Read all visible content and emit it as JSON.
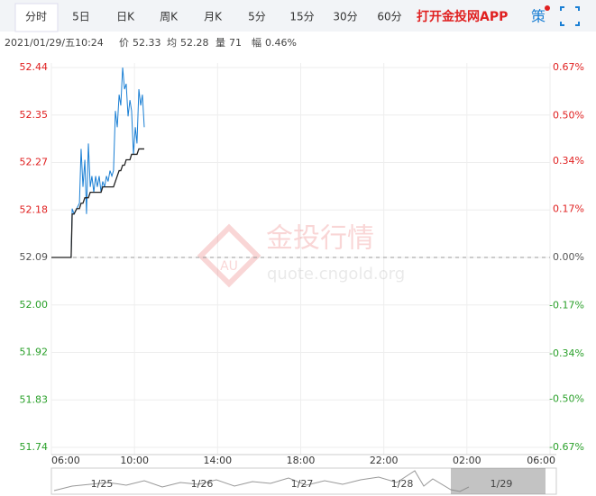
{
  "toolbar": {
    "tabs": [
      "分时",
      "5日",
      "日K",
      "周K",
      "月K",
      "5分",
      "15分",
      "30分",
      "60分"
    ],
    "app_link": "打开金投网APP",
    "strategy": "策"
  },
  "quote": {
    "datetime": "2021/01/29/五10:24",
    "price_label": "价",
    "price": "52.33",
    "avg_label": "均",
    "avg": "52.28",
    "volume_label": "量",
    "volume": "71",
    "change_label": "幅",
    "change": "0.46%"
  },
  "watermark": {
    "brand": "金投行情",
    "site": "quote.cngold.org",
    "logo": "AU"
  },
  "navigator": {
    "dates": [
      "1/25",
      "1/26",
      "1/27",
      "1/28",
      "1/29"
    ]
  },
  "chart_data": {
    "type": "line",
    "x": [
      0,
      0.95,
      1.0,
      1.09,
      1.22,
      1.35,
      1.43,
      1.52,
      1.61,
      1.69,
      1.78,
      1.87,
      1.95,
      2.04,
      2.13,
      2.21,
      2.3,
      2.39,
      2.47,
      2.56,
      2.65,
      2.73,
      2.82,
      2.91,
      2.99,
      3.08,
      3.17,
      3.26,
      3.34,
      3.43,
      3.52,
      3.6,
      3.69,
      3.78,
      3.86,
      3.95,
      4.04,
      4.12,
      4.21,
      4.3,
      4.38,
      4.47
    ],
    "series": [
      {
        "color": "#1a7fd4",
        "values": [
          52.09,
          52.09,
          52.18,
          52.17,
          52.18,
          52.19,
          52.29,
          52.22,
          52.27,
          52.17,
          52.3,
          52.22,
          52.24,
          52.21,
          52.24,
          52.22,
          52.24,
          52.21,
          52.23,
          52.22,
          52.24,
          52.23,
          52.25,
          52.24,
          52.25,
          52.36,
          52.33,
          52.39,
          52.37,
          52.44,
          52.4,
          52.41,
          52.35,
          52.38,
          52.36,
          52.28,
          52.33,
          52.3,
          52.4,
          52.37,
          52.39,
          52.33
        ]
      },
      {
        "color": "#222222",
        "values": [
          52.09,
          52.09,
          52.17,
          52.17,
          52.18,
          52.18,
          52.19,
          52.19,
          52.2,
          52.2,
          52.2,
          52.21,
          52.21,
          52.21,
          52.21,
          52.21,
          52.21,
          52.21,
          52.22,
          52.22,
          52.22,
          52.22,
          52.22,
          52.22,
          52.22,
          52.23,
          52.24,
          52.25,
          52.25,
          52.26,
          52.26,
          52.27,
          52.27,
          52.27,
          52.28,
          52.28,
          52.28,
          52.28,
          52.29,
          52.29,
          52.29,
          52.29
        ]
      }
    ],
    "xlim": [
      0,
      24
    ],
    "xticks": [
      {
        "value": 0,
        "label": "06:00"
      },
      {
        "value": 4,
        "label": "10:00"
      },
      {
        "value": 8,
        "label": "14:00"
      },
      {
        "value": 12,
        "label": "18:00"
      },
      {
        "value": 16,
        "label": "22:00"
      },
      {
        "value": 20,
        "label": "02:00"
      },
      {
        "value": 24,
        "label": "06:00"
      }
    ],
    "ylim": [
      51.74,
      52.44
    ],
    "yticks": [
      52.44,
      {
        "value": 52.3525,
        "label": "52.35"
      },
      {
        "value": 52.265,
        "label": "52.27"
      },
      {
        "value": 52.1775,
        "label": "52.18"
      },
      52.09,
      {
        "value": 52.0025,
        "label": "52.00"
      },
      {
        "value": 51.915,
        "label": "51.92"
      },
      {
        "value": 51.8275,
        "label": "51.83"
      },
      51.74
    ],
    "y2lim": [
      -0.67,
      0.67
    ],
    "y2ticks": [
      {
        "value": 0.67,
        "label": "0.67%"
      },
      {
        "value": 0.5,
        "label": "0.50%"
      },
      {
        "value": 0.34,
        "label": "0.34%"
      },
      {
        "value": 0.17,
        "label": "0.17%"
      },
      {
        "value": 0,
        "label": "0.00%"
      },
      {
        "value": -0.17,
        "label": "-0.17%"
      },
      {
        "value": -0.34,
        "label": "-0.34%"
      },
      {
        "value": -0.5,
        "label": "-0.50%"
      },
      {
        "value": -0.67,
        "label": "-0.67%"
      }
    ],
    "reference_line": 52.09,
    "up_color": "#e02020",
    "down_color": "#2aa02a",
    "flat_color": "#555555",
    "grid": true
  }
}
